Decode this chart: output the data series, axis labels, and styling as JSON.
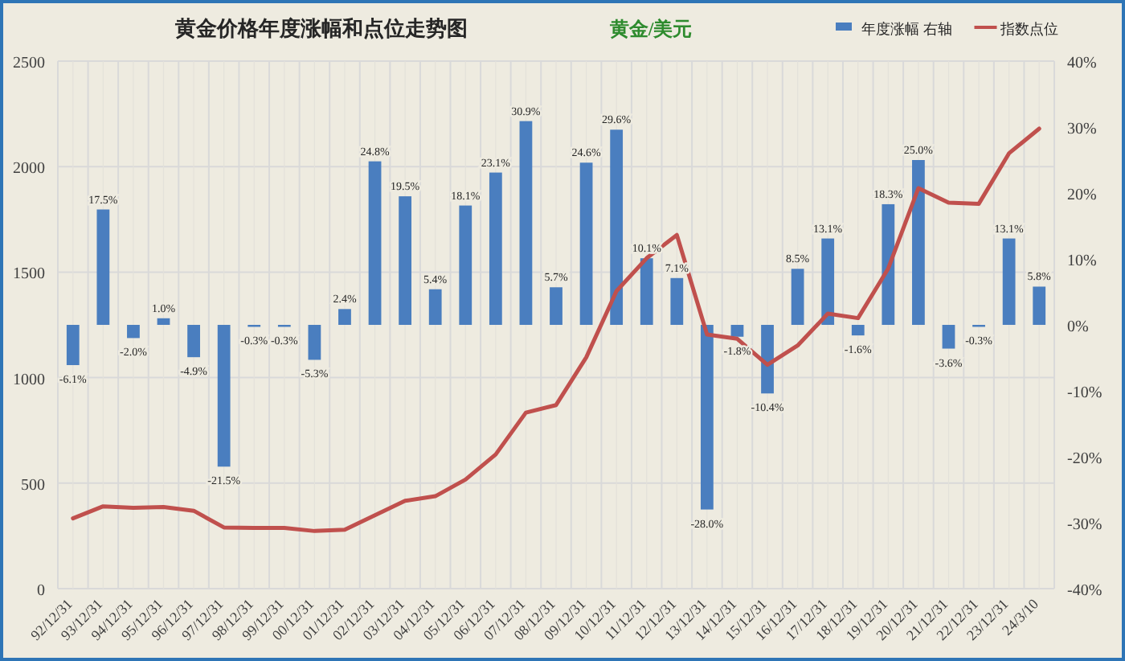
{
  "chart_data": {
    "type": "bar",
    "title": "黄金价格年度涨幅和点位走势图",
    "annotations": [
      "黄金/美元"
    ],
    "categories": [
      "92/12/31",
      "93/12/31",
      "94/12/31",
      "95/12/31",
      "96/12/31",
      "97/12/31",
      "98/12/31",
      "99/12/31",
      "00/12/31",
      "01/12/31",
      "02/12/31",
      "03/12/31",
      "04/12/31",
      "05/12/31",
      "06/12/31",
      "07/12/31",
      "08/12/31",
      "09/12/31",
      "10/12/31",
      "11/12/31",
      "12/12/31",
      "13/12/31",
      "14/12/31",
      "15/12/31",
      "16/12/31",
      "17/12/31",
      "18/12/31",
      "19/12/31",
      "20/12/31",
      "21/12/31",
      "22/12/31",
      "23/12/31",
      "24/3/10"
    ],
    "series": [
      {
        "name": "年度涨幅 右轴",
        "axis": "y2",
        "color": "#4a7ebf",
        "values": [
          -6.1,
          17.5,
          -2.0,
          1.0,
          -4.9,
          -21.5,
          -0.3,
          -0.3,
          -5.3,
          2.4,
          24.8,
          19.5,
          5.4,
          18.1,
          23.1,
          30.9,
          5.7,
          24.6,
          29.6,
          10.1,
          7.1,
          -28.0,
          -1.8,
          -10.4,
          8.5,
          13.1,
          -1.6,
          18.3,
          25.0,
          -3.6,
          -0.3,
          13.1,
          5.8
        ],
        "value_labels": [
          "-6.1%",
          "17.5%",
          "-2.0%",
          "1.0%",
          "-4.9%",
          "-21.5%",
          "-0.3%",
          "-0.3%",
          "-5.3%",
          "2.4%",
          "24.8%",
          "19.5%",
          "5.4%",
          "18.1%",
          "23.1%",
          "30.9%",
          "5.7%",
          "24.6%",
          "29.6%",
          "10.1%",
          "7.1%",
          "-28.0%",
          "-1.8%",
          "-10.4%",
          "8.5%",
          "13.1%",
          "-1.6%",
          "18.3%",
          "25.0%",
          "-3.6%",
          "-0.3%",
          "13.1%",
          "5.8%"
        ]
      },
      {
        "name": "指数点位",
        "type": "line",
        "axis": "y",
        "color": "#c0504d",
        "values": [
          333,
          390,
          383,
          387,
          369,
          290,
          288,
          288,
          273,
          279,
          348,
          416,
          438,
          517,
          636,
          834,
          870,
          1096,
          1410,
          1566,
          1676,
          1204,
          1184,
          1061,
          1152,
          1303,
          1282,
          1517,
          1898,
          1829,
          1824,
          2063,
          2180
        ]
      }
    ],
    "ylim": [
      0,
      2500
    ],
    "yticks": [
      0,
      500,
      1000,
      1500,
      2000,
      2500
    ],
    "y2lim": [
      -40,
      40
    ],
    "y2ticks": [
      {
        "value": -40,
        "label": "-40%"
      },
      {
        "value": -30,
        "label": "-30%"
      },
      {
        "value": -20,
        "label": "-20%"
      },
      {
        "value": -10,
        "label": "-10%"
      },
      {
        "value": 0,
        "label": "0%"
      },
      {
        "value": 10,
        "label": "10%"
      },
      {
        "value": 20,
        "label": "20%"
      },
      {
        "value": 30,
        "label": "30%"
      },
      {
        "value": 40,
        "label": "40%"
      }
    ],
    "grid": true,
    "legend": "top right",
    "marker": "none"
  }
}
